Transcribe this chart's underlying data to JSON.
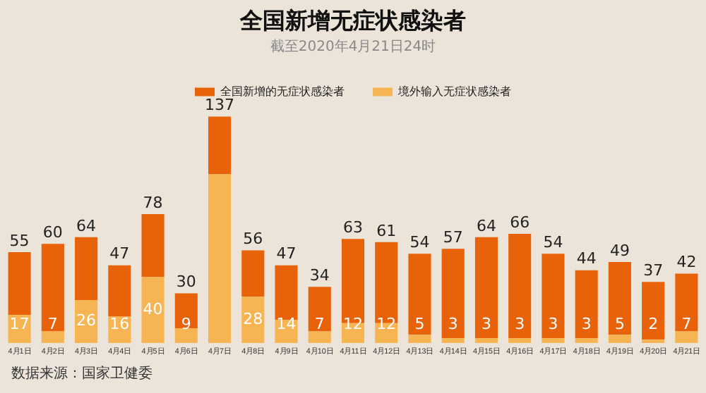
{
  "chart_data": {
    "type": "bar",
    "title": "全国新增无症状感染者",
    "subtitle": "截至2020年4月21日24时",
    "categories": [
      "4月1日",
      "4月2日",
      "4月3日",
      "4月4日",
      "4月5日",
      "4月6日",
      "4月7日",
      "4月8日",
      "4月9日",
      "4月10日",
      "4月11日",
      "4月12日",
      "4月13日",
      "4月14日",
      "4月15日",
      "4月16日",
      "4月17日",
      "4月18日",
      "4月19日",
      "4月20日",
      "4月21日"
    ],
    "stacked": true,
    "series": [
      {
        "name": "境外输入无症状感染者",
        "color": "#f7b452",
        "values": [
          17,
          7,
          26,
          16,
          40,
          9,
          102,
          28,
          14,
          7,
          12,
          12,
          5,
          3,
          3,
          3,
          3,
          3,
          5,
          2,
          7
        ],
        "value_labels": [
          "17",
          "7",
          "26",
          "16",
          "40",
          "9",
          null,
          "28",
          "14",
          "7",
          "12",
          "12",
          "5",
          "3",
          "3",
          "3",
          "3",
          "3",
          "5",
          "2",
          "7"
        ]
      },
      {
        "name": "全国新增的无症状感染者",
        "color": "#e8620a",
        "values": [
          38,
          53,
          38,
          31,
          38,
          21,
          35,
          28,
          33,
          27,
          51,
          49,
          49,
          54,
          61,
          63,
          51,
          41,
          44,
          35,
          35
        ]
      }
    ],
    "totals": [
      "55",
      "60",
      "64",
      "47",
      "78",
      "30",
      "137",
      "56",
      "47",
      "34",
      "63",
      "61",
      "54",
      "57",
      "64",
      "66",
      "54",
      "44",
      "49",
      "37",
      "42"
    ],
    "tick_labels": "x",
    "grid": false,
    "legend": "top",
    "annotations": [
      "数据来源：国家卫健委"
    ]
  }
}
